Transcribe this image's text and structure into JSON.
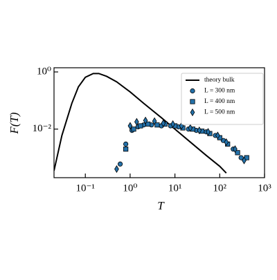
{
  "chart_data": {
    "type": "scatter",
    "xlabel": "T",
    "ylabel": "F(T)",
    "xscale": "log",
    "yscale": "log",
    "xlim": [
      0.02,
      1000
    ],
    "ylim": [
      0.0002,
      1.4
    ],
    "xticks": [
      {
        "value": 0.1,
        "label": "10⁻¹"
      },
      {
        "value": 1,
        "label": "10⁰"
      },
      {
        "value": 10,
        "label": "10¹"
      },
      {
        "value": 100,
        "label": "10²"
      },
      {
        "value": 1000,
        "label": "10³"
      }
    ],
    "yticks": [
      {
        "value": 0.01,
        "label": "10⁻²"
      },
      {
        "value": 1,
        "label": "10⁰"
      }
    ],
    "legend": "upper right",
    "series": [
      {
        "name": "theory bulk",
        "type": "line",
        "color": "#000000",
        "x": [
          0.02,
          0.03,
          0.05,
          0.07,
          0.1,
          0.15,
          0.2,
          0.3,
          0.5,
          1,
          2,
          5,
          10,
          20,
          50,
          100,
          140
        ],
        "values": [
          0.00035,
          0.006,
          0.08,
          0.3,
          0.65,
          0.88,
          0.88,
          0.7,
          0.45,
          0.2,
          0.08,
          0.025,
          0.01,
          0.004,
          0.0012,
          0.0005,
          0.00029
        ]
      },
      {
        "name": "L = 300 nm",
        "type": "scatter",
        "marker": "circle",
        "color": "#2471a9",
        "x": [
          0.6,
          0.8,
          1.1,
          1.5,
          2,
          3,
          5,
          8,
          12,
          20,
          30,
          50,
          80,
          120,
          200,
          300
        ],
        "values": [
          0.0006,
          0.003,
          0.009,
          0.012,
          0.014,
          0.014,
          0.013,
          0.013,
          0.012,
          0.01,
          0.009,
          0.008,
          0.006,
          0.004,
          0.002,
          0.001
        ]
      },
      {
        "name": "L = 400 nm",
        "type": "scatter",
        "marker": "square",
        "color": "#2471a9",
        "x": [
          0.8,
          1.2,
          1.7,
          2.5,
          4,
          6,
          10,
          15,
          25,
          40,
          60,
          100,
          150,
          250,
          400
        ],
        "values": [
          0.002,
          0.01,
          0.013,
          0.015,
          0.014,
          0.015,
          0.013,
          0.011,
          0.01,
          0.0085,
          0.007,
          0.005,
          0.003,
          0.0015,
          0.001
        ]
      },
      {
        "name": "L = 500 nm",
        "type": "scatter",
        "marker": "diamond",
        "color": "#2471a9",
        "x": [
          0.5,
          1.0,
          1.4,
          2.2,
          3.5,
          5.5,
          9,
          14,
          22,
          35,
          55,
          90,
          140,
          220,
          350
        ],
        "values": [
          0.0004,
          0.013,
          0.018,
          0.02,
          0.019,
          0.016,
          0.015,
          0.013,
          0.011,
          0.009,
          0.008,
          0.006,
          0.0035,
          0.002,
          0.0008
        ]
      }
    ]
  }
}
